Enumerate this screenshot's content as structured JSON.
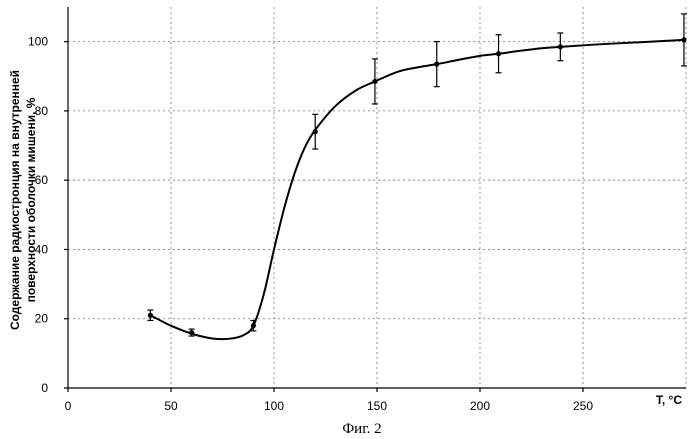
{
  "chart_data": {
    "type": "line",
    "xlabel": "T, °C",
    "ylabel_line1": "Содержание радиостронция на внутренней",
    "ylabel_line2": "поверхности оболочки мишени, %",
    "caption": "Фиг. 2",
    "xlim": [
      0,
      300
    ],
    "ylim": [
      0,
      110
    ],
    "x_ticks": [
      0,
      50,
      100,
      150,
      200,
      250
    ],
    "y_ticks": [
      0,
      20,
      40,
      60,
      80,
      100
    ],
    "grid": true,
    "series": [
      {
        "points": [
          {
            "x": 40,
            "y": 21,
            "err": 1.5
          },
          {
            "x": 60,
            "y": 16,
            "err": 1.0
          },
          {
            "x": 90,
            "y": 18,
            "err": 1.5
          },
          {
            "x": 120,
            "y": 74,
            "err": 5
          },
          {
            "x": 149,
            "y": 88.5,
            "err": 6.5
          },
          {
            "x": 179,
            "y": 93.5,
            "err": 6.5
          },
          {
            "x": 209,
            "y": 96.5,
            "err": 5.5
          },
          {
            "x": 239,
            "y": 98.5,
            "err": 4
          },
          {
            "x": 299,
            "y": 100.5,
            "err": 7.5
          }
        ],
        "curve": [
          [
            40,
            21
          ],
          [
            50,
            18
          ],
          [
            60,
            15.7
          ],
          [
            70,
            14.3
          ],
          [
            78,
            14.2
          ],
          [
            85,
            15.2
          ],
          [
            90,
            18
          ],
          [
            95,
            27
          ],
          [
            100,
            40
          ],
          [
            105,
            52
          ],
          [
            110,
            62
          ],
          [
            115,
            69.5
          ],
          [
            120,
            74.5
          ],
          [
            130,
            81.5
          ],
          [
            140,
            86
          ],
          [
            149,
            88.5
          ],
          [
            160,
            91.3
          ],
          [
            170,
            92.6
          ],
          [
            179,
            93.5
          ],
          [
            190,
            94.8
          ],
          [
            200,
            95.9
          ],
          [
            209,
            96.5
          ],
          [
            220,
            97.4
          ],
          [
            230,
            98.1
          ],
          [
            239,
            98.5
          ],
          [
            260,
            99.3
          ],
          [
            280,
            99.9
          ],
          [
            299,
            100.5
          ]
        ]
      }
    ]
  }
}
